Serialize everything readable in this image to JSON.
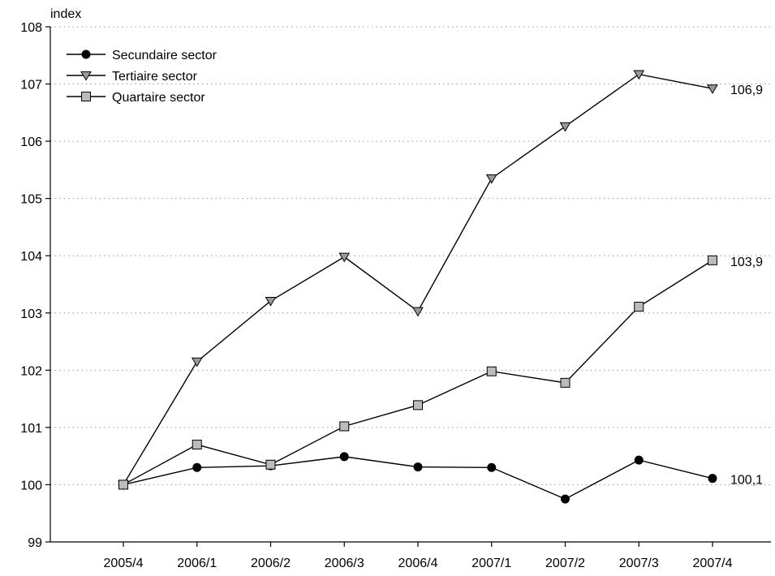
{
  "chart_data": {
    "type": "line",
    "ylabel": "index",
    "ylim": [
      99,
      108
    ],
    "yticks": [
      99,
      100,
      101,
      102,
      103,
      104,
      105,
      106,
      107,
      108
    ],
    "categories": [
      "2005/4",
      "2006/1",
      "2006/2",
      "2006/3",
      "2006/4",
      "2007/1",
      "2007/2",
      "2007/3",
      "2007/4"
    ],
    "grid": "horizontal dotted",
    "legend_position": "top-left",
    "series": [
      {
        "name": "Secundaire sector",
        "marker": "circle",
        "marker_color": "#000000",
        "values": [
          100.0,
          100.3,
          100.33,
          100.49,
          100.31,
          100.3,
          99.75,
          100.43,
          100.11
        ],
        "end_label": "100,1"
      },
      {
        "name": "Tertiaire sector",
        "marker": "triangle-down",
        "marker_color": "#999999",
        "values": [
          100.0,
          102.15,
          103.21,
          103.98,
          103.03,
          105.35,
          106.26,
          107.17,
          106.92
        ],
        "end_label": "106,9"
      },
      {
        "name": "Quartaire sector",
        "marker": "square",
        "marker_color": "#bbbbbb",
        "values": [
          100.0,
          100.7,
          100.35,
          101.02,
          101.39,
          101.98,
          101.78,
          103.11,
          103.92
        ],
        "end_label": "103,9"
      }
    ]
  }
}
